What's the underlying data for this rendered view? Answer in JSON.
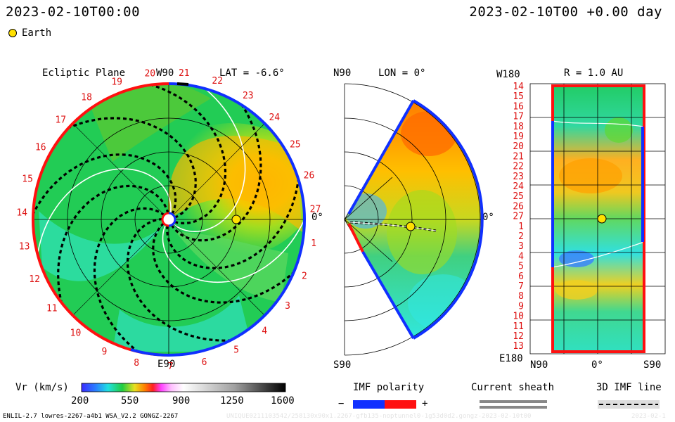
{
  "header": {
    "start_time": "2023-02-10T00:00",
    "current_time": "2023-02-10T00 +0.00 day"
  },
  "legend": {
    "earth_label": "Earth"
  },
  "panels": {
    "ecliptic": {
      "title": "Ecliptic Plane",
      "lat_label": "LAT = -6.6°",
      "top_label": "W90",
      "bottom_label": "E90",
      "right_label": "0°",
      "carrington_rotations": [
        "1",
        "2",
        "3",
        "4",
        "5",
        "6",
        "7",
        "8",
        "9",
        "10",
        "11",
        "12",
        "13",
        "14",
        "15",
        "16",
        "17",
        "18",
        "19",
        "20",
        "21",
        "22",
        "23",
        "24",
        "25",
        "26",
        "27"
      ]
    },
    "meridional": {
      "top_label": "N90",
      "bottom_label": "S90",
      "lon_label": "LON = 0°",
      "right_label": "0°"
    },
    "map": {
      "top_left_label": "W180",
      "bottom_left_label": "E180",
      "r_label": "R = 1.0 AU",
      "x_labels": [
        "N90",
        "0°",
        "S90"
      ],
      "y_labels": [
        "14",
        "15",
        "16",
        "17",
        "18",
        "19",
        "20",
        "21",
        "22",
        "23",
        "24",
        "25",
        "26",
        "27",
        "1",
        "2",
        "3",
        "4",
        "5",
        "6",
        "7",
        "8",
        "9",
        "10",
        "11",
        "12",
        "13"
      ]
    }
  },
  "colorbar": {
    "label": "Vr (km/s)",
    "ticks": [
      "200",
      "550",
      "900",
      "1250",
      "1600"
    ]
  },
  "legends": {
    "imf_title": "IMF polarity",
    "imf_minus": "−",
    "imf_plus": "+",
    "sheath_title": "Current sheath",
    "imfline_title": "3D IMF line"
  },
  "footer": {
    "model_info": "ENLIL-2.7 lowres-2267-a4b1 WSA_V2.2 GONGZ-2267",
    "run_id": "UNIQUE0211103542/258130x90x1.2267-gfb135-noptunnel0-1g53d0d2.gongz-2023-02-10t00",
    "date_stamp": "2023-02-1"
  },
  "colors": {
    "positive_polarity": "#ff1010",
    "negative_polarity": "#1030ff",
    "wind_background": "#22cc55",
    "carrington_text": "#dd1111"
  }
}
